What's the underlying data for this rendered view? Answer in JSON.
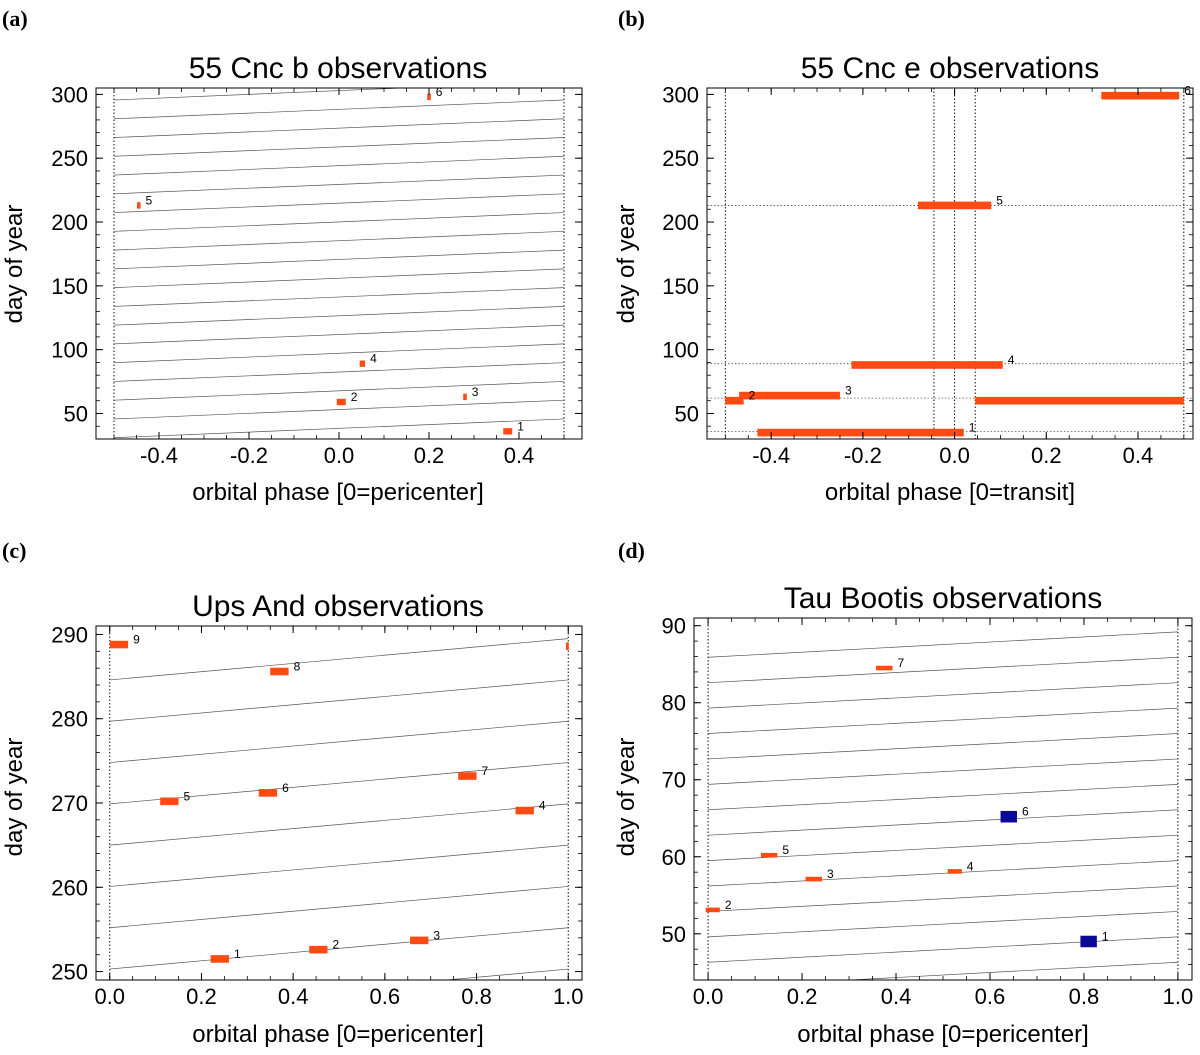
{
  "figure": {
    "colors": {
      "observation": "#ff4a14",
      "blue_observation": "#0a0a96",
      "grid": "#555555",
      "frame": "#000000"
    }
  },
  "chart_data": [
    {
      "type": "scatter",
      "panel_label": "(a)",
      "title": "55 Cnc b observations",
      "xlabel": "orbital phase [0=pericenter]",
      "ylabel": "day of year",
      "xlim": [
        -0.54,
        0.54
      ],
      "ylim": [
        30,
        305
      ],
      "xticks": [
        -0.4,
        -0.2,
        0.0,
        0.2,
        0.4
      ],
      "xtick_labels": [
        "-0.4",
        "-0.2",
        "0.0",
        "0.2",
        "0.4"
      ],
      "yticks": [
        50,
        100,
        150,
        200,
        250,
        300
      ],
      "ytick_labels": [
        "50",
        "100",
        "150",
        "200",
        "250",
        "300"
      ],
      "vlines": [
        -0.5,
        0.5
      ],
      "phase_tracks": {
        "phase_min": -0.5,
        "phase_max": 0.5,
        "start_days": [
          31.0,
          45.7,
          60.4,
          75.1,
          89.8,
          104.5,
          119.2,
          133.9,
          148.6,
          163.3,
          178.0,
          192.7,
          207.4,
          222.1,
          236.8,
          251.5,
          266.2,
          280.9,
          295.6
        ],
        "rise_per_cycle": 14.7
      },
      "observations": [
        {
          "label": "1",
          "phase": 0.375,
          "day": 36,
          "dphase": 0.02,
          "dday": 5
        },
        {
          "label": "2",
          "phase": 0.005,
          "day": 59,
          "dphase": 0.02,
          "dday": 5
        },
        {
          "label": "3",
          "phase": 0.28,
          "day": 63,
          "dphase": 0.008,
          "dday": 5
        },
        {
          "label": "4",
          "phase": 0.052,
          "day": 89,
          "dphase": 0.012,
          "dday": 5
        },
        {
          "label": "5",
          "phase": -0.445,
          "day": 213,
          "dphase": 0.008,
          "dday": 5
        },
        {
          "label": "6",
          "phase": 0.2,
          "day": 298,
          "dphase": 0.008,
          "dday": 5
        }
      ]
    },
    {
      "type": "scatter",
      "panel_label": "(b)",
      "title": "55 Cnc e observations",
      "xlabel": "orbital phase [0=transit]",
      "ylabel": "day of year",
      "xlim": [
        -0.54,
        0.52
      ],
      "ylim": [
        30,
        305
      ],
      "xticks": [
        -0.4,
        -0.2,
        0.0,
        0.2,
        0.4
      ],
      "xtick_labels": [
        "-0.4",
        "-0.2",
        "0.0",
        "0.2",
        "0.4"
      ],
      "yticks": [
        50,
        100,
        150,
        200,
        250,
        300
      ],
      "ytick_labels": [
        "50",
        "100",
        "150",
        "200",
        "250",
        "300"
      ],
      "vlines": [
        -0.5,
        -0.045,
        0.0,
        0.045,
        0.5
      ],
      "hlines": [
        36,
        62,
        89,
        213
      ],
      "observations": [
        {
          "label": "1",
          "x0": -0.43,
          "x1": 0.02,
          "day": 35,
          "dday": 6
        },
        {
          "label": "",
          "x0": 0.045,
          "x1": 0.5,
          "day": 60,
          "dday": 6
        },
        {
          "label": "2",
          "x0": -0.5,
          "x1": -0.46,
          "day": 60,
          "dday": 6
        },
        {
          "label": "3",
          "x0": -0.47,
          "x1": -0.25,
          "day": 64,
          "dday": 6
        },
        {
          "label": "4",
          "x0": -0.225,
          "x1": 0.105,
          "day": 88,
          "dday": 6
        },
        {
          "label": "5",
          "x0": -0.08,
          "x1": 0.08,
          "day": 213,
          "dday": 6
        },
        {
          "label": "6",
          "x0": 0.32,
          "x1": 0.49,
          "day": 299,
          "dday": 6
        }
      ]
    },
    {
      "type": "scatter",
      "panel_label": "(c)",
      "title": "Ups And observations",
      "xlabel": "orbital phase [0=pericenter]",
      "ylabel": "day of year",
      "xlim": [
        -0.03,
        1.03
      ],
      "ylim": [
        249,
        291
      ],
      "xticks": [
        0.0,
        0.2,
        0.4,
        0.6,
        0.8,
        1.0
      ],
      "xtick_labels": [
        "0.0",
        "0.2",
        "0.4",
        "0.6",
        "0.8",
        "1.0"
      ],
      "yticks": [
        250,
        260,
        270,
        280,
        290
      ],
      "ytick_labels": [
        "250",
        "260",
        "270",
        "280",
        "290"
      ],
      "vlines": [
        0.0,
        1.0
      ],
      "phase_tracks": {
        "phase_min": 0.0,
        "phase_max": 1.0,
        "start_days": [
          245.4,
          250.3,
          255.2,
          260.1,
          265.0,
          269.9,
          274.8,
          279.7,
          284.6
        ],
        "rise_per_cycle": 4.9
      },
      "observations": [
        {
          "label": "1",
          "phase": 0.24,
          "day": 251.5,
          "dphase": 0.04,
          "dday": 0.9
        },
        {
          "label": "2",
          "phase": 0.455,
          "day": 252.6,
          "dphase": 0.04,
          "dday": 0.9
        },
        {
          "label": "3",
          "phase": 0.675,
          "day": 253.7,
          "dphase": 0.04,
          "dday": 0.9
        },
        {
          "label": "4",
          "phase": 0.905,
          "day": 269.1,
          "dphase": 0.04,
          "dday": 0.9
        },
        {
          "label": "5",
          "phase": 0.13,
          "day": 270.2,
          "dphase": 0.04,
          "dday": 0.9
        },
        {
          "label": "6",
          "phase": 0.345,
          "day": 271.2,
          "dphase": 0.04,
          "dday": 0.9
        },
        {
          "label": "7",
          "phase": 0.78,
          "day": 273.2,
          "dphase": 0.04,
          "dday": 0.9
        },
        {
          "label": "8",
          "phase": 0.37,
          "day": 285.6,
          "dphase": 0.04,
          "dday": 0.9
        },
        {
          "label": "9",
          "phase": 0.02,
          "day": 288.8,
          "dphase": 0.04,
          "dday": 0.9
        },
        {
          "label": "",
          "phase": 0.998,
          "day": 288.6,
          "dphase": 0.006,
          "dday": 0.9
        }
      ]
    },
    {
      "type": "scatter",
      "panel_label": "(d)",
      "title": "Tau Bootis observations",
      "xlabel": "orbital phase [0=pericenter]",
      "ylabel": "day of year",
      "xlim": [
        -0.03,
        1.03
      ],
      "ylim": [
        44,
        91
      ],
      "xticks": [
        0.0,
        0.2,
        0.4,
        0.6,
        0.8,
        1.0
      ],
      "xtick_labels": [
        "0.0",
        "0.2",
        "0.4",
        "0.6",
        "0.8",
        "1.0"
      ],
      "yticks": [
        50,
        60,
        70,
        80,
        90
      ],
      "ytick_labels": [
        "50",
        "60",
        "70",
        "80",
        "90"
      ],
      "vlines": [
        0.0,
        1.0
      ],
      "phase_tracks": {
        "phase_min": 0.0,
        "phase_max": 1.0,
        "start_days": [
          43.0,
          46.3,
          49.6,
          52.9,
          56.2,
          59.5,
          62.8,
          66.1,
          69.4,
          72.7,
          76.0,
          79.3,
          82.6,
          85.9
        ],
        "rise_per_cycle": 3.3
      },
      "observations": [
        {
          "label": "1",
          "phase": 0.81,
          "day": 49.0,
          "dphase": 0.035,
          "dday": 1.5,
          "color": "blue"
        },
        {
          "label": "2",
          "phase": 0.01,
          "day": 53.1,
          "dphase": 0.03,
          "dday": 0.6
        },
        {
          "label": "3",
          "phase": 0.225,
          "day": 57.1,
          "dphase": 0.035,
          "dday": 0.6
        },
        {
          "label": "4",
          "phase": 0.525,
          "day": 58.1,
          "dphase": 0.03,
          "dday": 0.6
        },
        {
          "label": "5",
          "phase": 0.13,
          "day": 60.2,
          "dphase": 0.035,
          "dday": 0.6
        },
        {
          "label": "6",
          "phase": 0.64,
          "day": 65.2,
          "dphase": 0.035,
          "dday": 1.5,
          "color": "blue"
        },
        {
          "label": "7",
          "phase": 0.375,
          "day": 84.5,
          "dphase": 0.035,
          "dday": 0.6
        }
      ]
    }
  ]
}
